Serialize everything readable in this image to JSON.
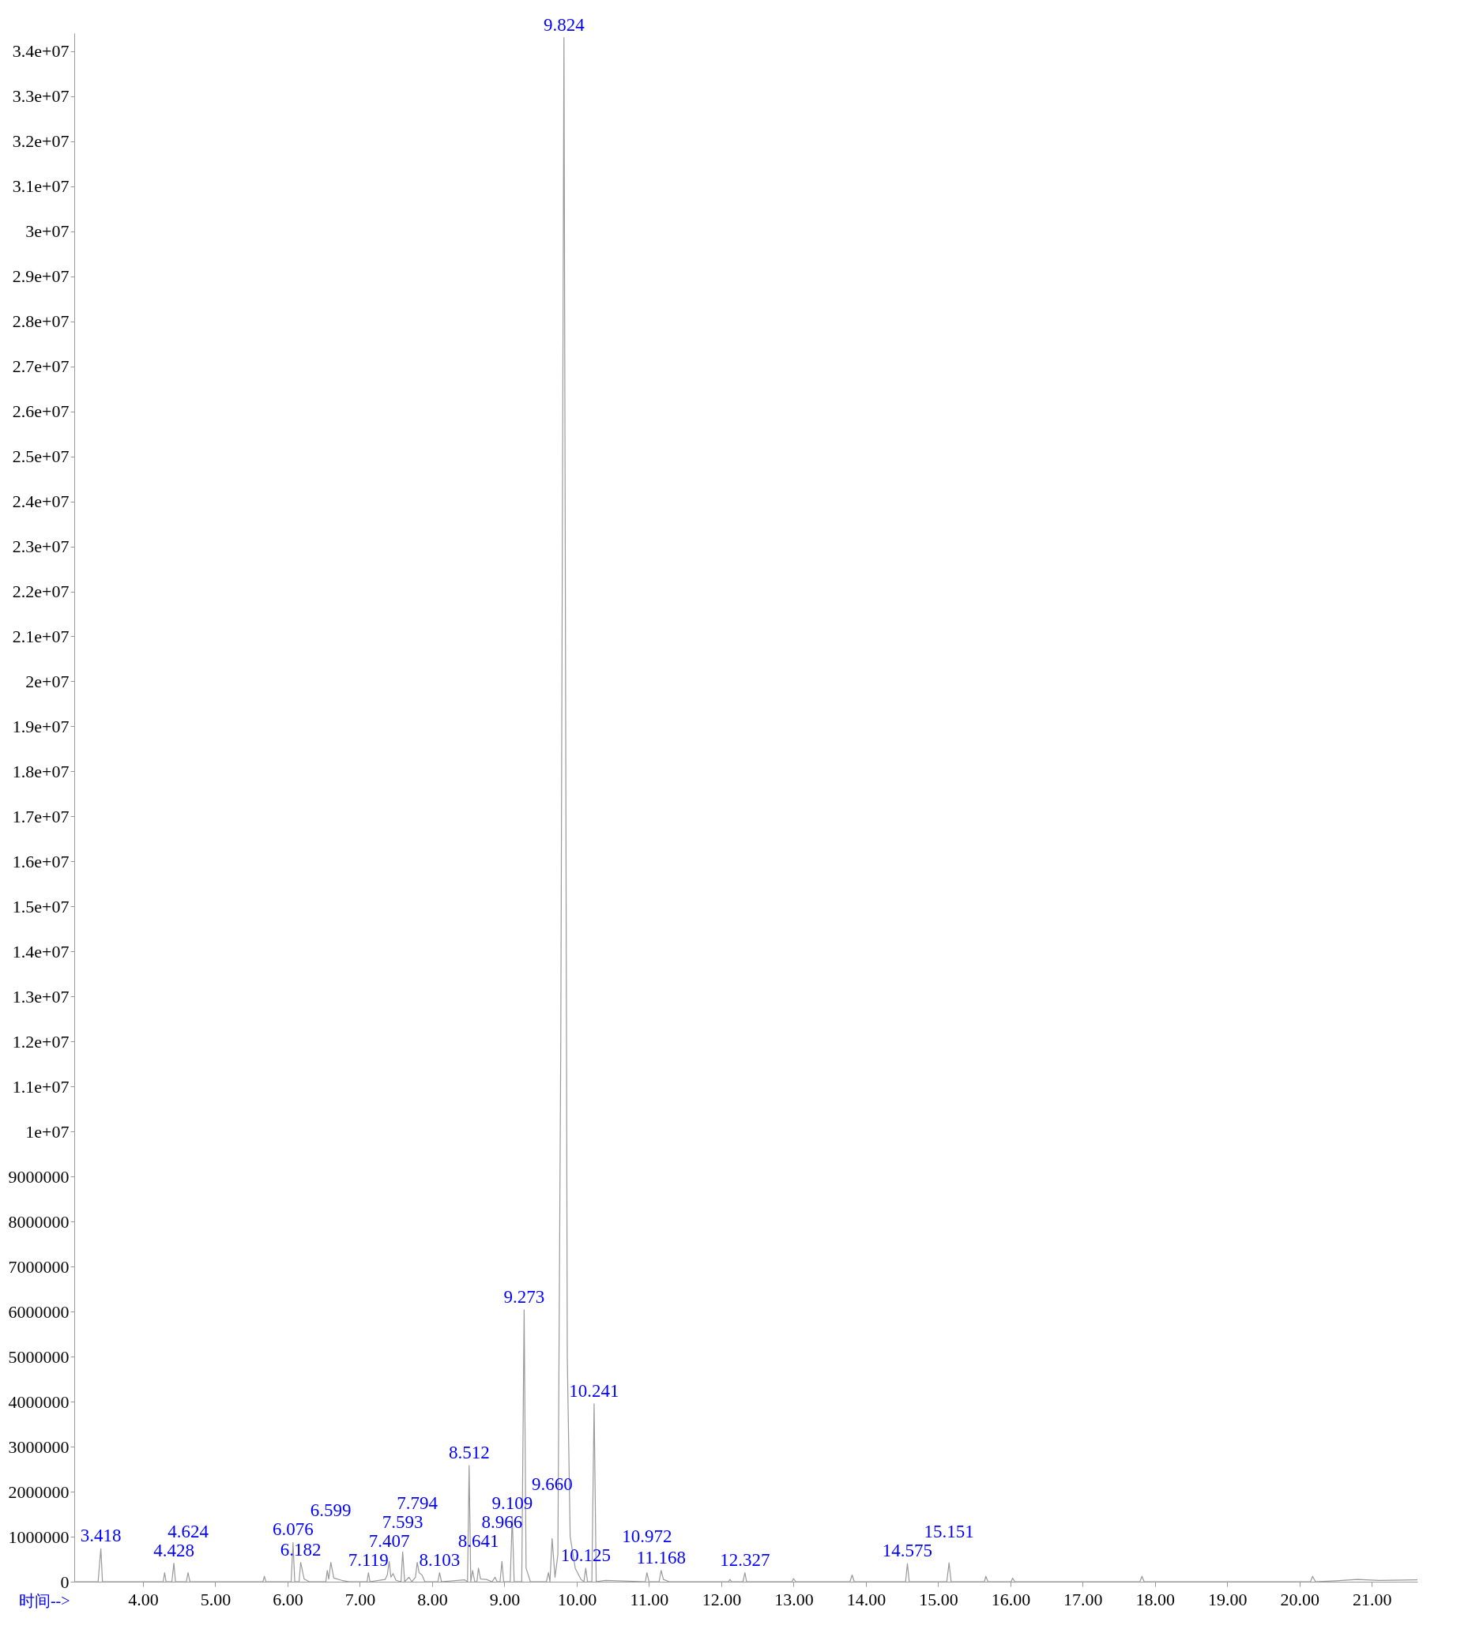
{
  "chart_data": {
    "type": "line",
    "xlabel": "时间-->",
    "x": [
      3.05,
      3.38,
      3.4,
      3.418,
      3.44,
      4.28,
      4.3,
      4.32,
      4.4,
      4.428,
      4.45,
      4.6,
      4.624,
      4.65,
      5.66,
      5.68,
      5.7,
      6.05,
      6.076,
      6.1,
      6.16,
      6.182,
      6.23,
      6.3,
      6.53,
      6.55,
      6.57,
      6.599,
      6.64,
      6.75,
      6.85,
      7.1,
      7.119,
      7.14,
      7.35,
      7.38,
      7.407,
      7.43,
      7.46,
      7.5,
      7.57,
      7.593,
      7.62,
      7.68,
      7.72,
      7.77,
      7.794,
      7.82,
      7.86,
      7.9,
      8.08,
      8.103,
      8.13,
      8.45,
      8.49,
      8.512,
      8.535,
      8.56,
      8.59,
      8.62,
      8.641,
      8.67,
      8.75,
      8.83,
      8.87,
      8.9,
      8.94,
      8.966,
      8.99,
      9.08,
      9.109,
      9.135,
      9.24,
      9.273,
      9.3,
      9.36,
      9.58,
      9.61,
      9.63,
      9.66,
      9.7,
      9.74,
      9.78,
      9.824,
      9.87,
      9.91,
      9.98,
      10.06,
      10.1,
      10.125,
      10.15,
      10.21,
      10.241,
      10.27,
      10.4,
      10.95,
      10.972,
      11.0,
      11.14,
      11.168,
      11.2,
      11.28,
      12.1,
      12.12,
      12.14,
      12.3,
      12.327,
      12.35,
      12.98,
      13.0,
      13.03,
      13.78,
      13.81,
      13.84,
      14.55,
      14.575,
      14.6,
      15.12,
      15.151,
      15.18,
      15.64,
      15.66,
      15.69,
      16.01,
      16.03,
      16.06,
      17.79,
      17.82,
      17.85,
      20.15,
      20.18,
      20.22,
      20.5,
      20.8,
      21.1,
      21.63
    ],
    "series": [
      {
        "color": "#999999",
        "values": [
          0,
          0,
          400000,
          730000,
          0,
          0,
          200000,
          0,
          0,
          410000,
          0,
          0,
          200000,
          0,
          0,
          120000,
          0,
          0,
          870000,
          0,
          0,
          430000,
          60000,
          0,
          0,
          250000,
          60000,
          430000,
          80000,
          30000,
          0,
          0,
          200000,
          0,
          50000,
          150000,
          450000,
          100000,
          180000,
          30000,
          0,
          660000,
          0,
          100000,
          0,
          100000,
          430000,
          200000,
          150000,
          0,
          0,
          200000,
          0,
          40000,
          0,
          2580000,
          0,
          250000,
          0,
          0,
          300000,
          60000,
          50000,
          0,
          100000,
          0,
          0,
          450000,
          0,
          0,
          1440000,
          0,
          0,
          6040000,
          300000,
          0,
          0,
          200000,
          0,
          960000,
          100000,
          600000,
          12000000,
          34300000,
          5000000,
          1000000,
          300000,
          50000,
          0,
          300000,
          0,
          0,
          3950000,
          0,
          30000,
          0,
          200000,
          0,
          0,
          250000,
          50000,
          0,
          0,
          50000,
          0,
          0,
          200000,
          0,
          0,
          70000,
          0,
          0,
          150000,
          0,
          0,
          400000,
          0,
          0,
          420000,
          0,
          0,
          120000,
          0,
          0,
          80000,
          0,
          0,
          120000,
          0,
          0,
          120000,
          0,
          20000,
          50000,
          30000,
          40000
        ]
      }
    ],
    "xlim": [
      3.05,
      21.63
    ],
    "xticks": [
      {
        "value": 4,
        "label": "4.00"
      },
      {
        "value": 5,
        "label": "5.00"
      },
      {
        "value": 6,
        "label": "6.00"
      },
      {
        "value": 7,
        "label": "7.00"
      },
      {
        "value": 8,
        "label": "8.00"
      },
      {
        "value": 9,
        "label": "9.00"
      },
      {
        "value": 10,
        "label": "10.00"
      },
      {
        "value": 11,
        "label": "11.00"
      },
      {
        "value": 12,
        "label": "12.00"
      },
      {
        "value": 13,
        "label": "13.00"
      },
      {
        "value": 14,
        "label": "14.00"
      },
      {
        "value": 15,
        "label": "15.00"
      },
      {
        "value": 16,
        "label": "16.00"
      },
      {
        "value": 17,
        "label": "17.00"
      },
      {
        "value": 18,
        "label": "18.00"
      },
      {
        "value": 19,
        "label": "19.00"
      },
      {
        "value": 20,
        "label": "20.00"
      },
      {
        "value": 21,
        "label": "21.00"
      }
    ],
    "ylim": [
      0,
      34400000
    ],
    "yticks": [
      0,
      1000000,
      2000000,
      3000000,
      4000000,
      5000000,
      6000000,
      7000000,
      8000000,
      9000000,
      {
        "value": 10000000,
        "label": "1e+07"
      },
      {
        "value": 11000000,
        "label": "1.1e+07"
      },
      {
        "value": 12000000,
        "label": "1.2e+07"
      },
      {
        "value": 13000000,
        "label": "1.3e+07"
      },
      {
        "value": 14000000,
        "label": "1.4e+07"
      },
      {
        "value": 15000000,
        "label": "1.5e+07"
      },
      {
        "value": 16000000,
        "label": "1.6e+07"
      },
      {
        "value": 17000000,
        "label": "1.7e+07"
      },
      {
        "value": 18000000,
        "label": "1.8e+07"
      },
      {
        "value": 19000000,
        "label": "1.9e+07"
      },
      {
        "value": 20000000,
        "label": "2e+07"
      },
      {
        "value": 21000000,
        "label": "2.1e+07"
      },
      {
        "value": 22000000,
        "label": "2.2e+07"
      },
      {
        "value": 23000000,
        "label": "2.3e+07"
      },
      {
        "value": 24000000,
        "label": "2.4e+07"
      },
      {
        "value": 25000000,
        "label": "2.5e+07"
      },
      {
        "value": 26000000,
        "label": "2.6e+07"
      },
      {
        "value": 27000000,
        "label": "2.7e+07"
      },
      {
        "value": 28000000,
        "label": "2.8e+07"
      },
      {
        "value": 29000000,
        "label": "2.9e+07"
      },
      {
        "value": 30000000,
        "label": "3e+07"
      },
      {
        "value": 31000000,
        "label": "3.1e+07"
      },
      {
        "value": 32000000,
        "label": "3.2e+07"
      },
      {
        "value": 33000000,
        "label": "3.3e+07"
      },
      {
        "value": 34000000,
        "label": "3.4e+07"
      }
    ],
    "annotations": [
      {
        "text": "3.418",
        "x": 3.418,
        "y": 730000
      },
      {
        "text": "4.428",
        "x": 4.428,
        "y": 410000
      },
      {
        "text": "4.624",
        "x": 4.624,
        "y": 200000
      },
      {
        "text": "6.076",
        "x": 6.076,
        "y": 870000
      },
      {
        "text": "6.182",
        "x": 6.182,
        "y": 430000
      },
      {
        "text": "6.599",
        "x": 6.599,
        "y": 430000
      },
      {
        "text": "7.119",
        "x": 7.119,
        "y": 200000
      },
      {
        "text": "7.407",
        "x": 7.407,
        "y": 450000
      },
      {
        "text": "7.593",
        "x": 7.593,
        "y": 660000
      },
      {
        "text": "7.794",
        "x": 7.794,
        "y": 430000
      },
      {
        "text": "8.103",
        "x": 8.103,
        "y": 200000
      },
      {
        "text": "8.512",
        "x": 8.512,
        "y": 2580000
      },
      {
        "text": "8.641",
        "x": 8.641,
        "y": 300000
      },
      {
        "text": "8.966",
        "x": 8.966,
        "y": 450000
      },
      {
        "text": "9.109",
        "x": 9.109,
        "y": 1440000
      },
      {
        "text": "9.273",
        "x": 9.273,
        "y": 6040000
      },
      {
        "text": "9.660",
        "x": 9.66,
        "y": 960000
      },
      {
        "text": "9.824",
        "x": 9.824,
        "y": 34300000
      },
      {
        "text": "10.125",
        "x": 10.125,
        "y": 300000
      },
      {
        "text": "10.241",
        "x": 10.241,
        "y": 3950000
      },
      {
        "text": "10.972",
        "x": 10.972,
        "y": 200000
      },
      {
        "text": "11.168",
        "x": 11.168,
        "y": 250000
      },
      {
        "text": "12.327",
        "x": 12.327,
        "y": 200000
      },
      {
        "text": "14.575",
        "x": 14.575,
        "y": 400000
      },
      {
        "text": "15.151",
        "x": 15.151,
        "y": 420000
      }
    ]
  }
}
